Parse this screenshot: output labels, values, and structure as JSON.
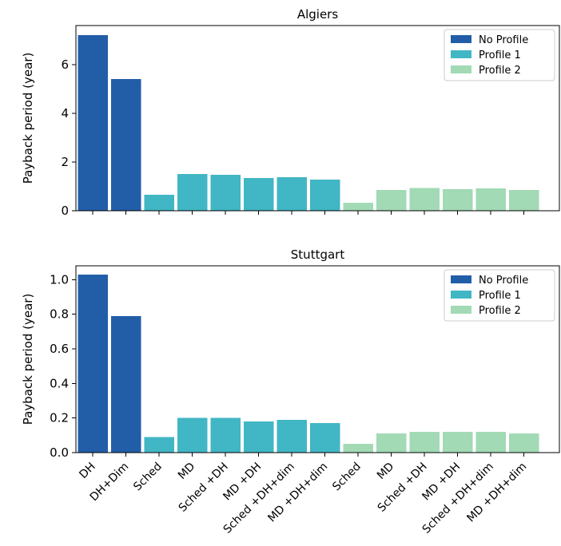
{
  "chart_data": [
    {
      "type": "bar",
      "title": "Algiers",
      "xlabel": "",
      "ylabel": "Payback period (year)",
      "ylim": [
        0,
        7.6
      ],
      "yticks": [
        0,
        2,
        4,
        6
      ],
      "ytick_labels": [
        "0",
        "2",
        "4",
        "6"
      ],
      "show_xtick_labels": false,
      "categories": [
        "DH",
        "DH+Dim",
        "Sched",
        "MD",
        "Sched +DH",
        "MD +DH",
        "Sched +DH+dim",
        "MD +DH+dim",
        "Sched",
        "MD",
        "Sched +DH",
        "MD +DH",
        "Sched +DH+dim",
        "MD +DH+dim"
      ],
      "values": [
        7.2,
        5.4,
        0.65,
        1.5,
        1.47,
        1.35,
        1.38,
        1.28,
        0.33,
        0.85,
        0.93,
        0.88,
        0.92,
        0.86
      ],
      "groups": [
        "No Profile",
        "No Profile",
        "Profile 1",
        "Profile 1",
        "Profile 1",
        "Profile 1",
        "Profile 1",
        "Profile 1",
        "Profile 2",
        "Profile 2",
        "Profile 2",
        "Profile 2",
        "Profile 2",
        "Profile 2"
      ],
      "legend": [
        "No Profile",
        "Profile 1",
        "Profile 2"
      ],
      "legend_position": "top-right",
      "grid": false
    },
    {
      "type": "bar",
      "title": "Stuttgart",
      "xlabel": "",
      "ylabel": "Payback period (year)",
      "ylim": [
        0,
        1.08
      ],
      "yticks": [
        0,
        0.2,
        0.4,
        0.6,
        0.8,
        1.0
      ],
      "ytick_labels": [
        "0.0",
        "0.2",
        "0.4",
        "0.6",
        "0.8",
        "1.0"
      ],
      "show_xtick_labels": true,
      "categories": [
        "DH",
        "DH+Dim",
        "Sched",
        "MD",
        "Sched +DH",
        "MD +DH",
        "Sched +DH+dim",
        "MD +DH+dim",
        "Sched",
        "MD",
        "Sched +DH",
        "MD +DH",
        "Sched +DH+dim",
        "MD +DH+dim"
      ],
      "values": [
        1.03,
        0.79,
        0.09,
        0.2,
        0.2,
        0.18,
        0.19,
        0.17,
        0.05,
        0.11,
        0.12,
        0.12,
        0.12,
        0.11
      ],
      "groups": [
        "No Profile",
        "No Profile",
        "Profile 1",
        "Profile 1",
        "Profile 1",
        "Profile 1",
        "Profile 1",
        "Profile 1",
        "Profile 2",
        "Profile 2",
        "Profile 2",
        "Profile 2",
        "Profile 2",
        "Profile 2"
      ],
      "legend": [
        "No Profile",
        "Profile 1",
        "Profile 2"
      ],
      "legend_position": "top-right",
      "grid": false
    }
  ],
  "colors": {
    "No Profile": "#225ea8",
    "Profile 1": "#41b6c4",
    "Profile 2": "#a1dab4"
  }
}
